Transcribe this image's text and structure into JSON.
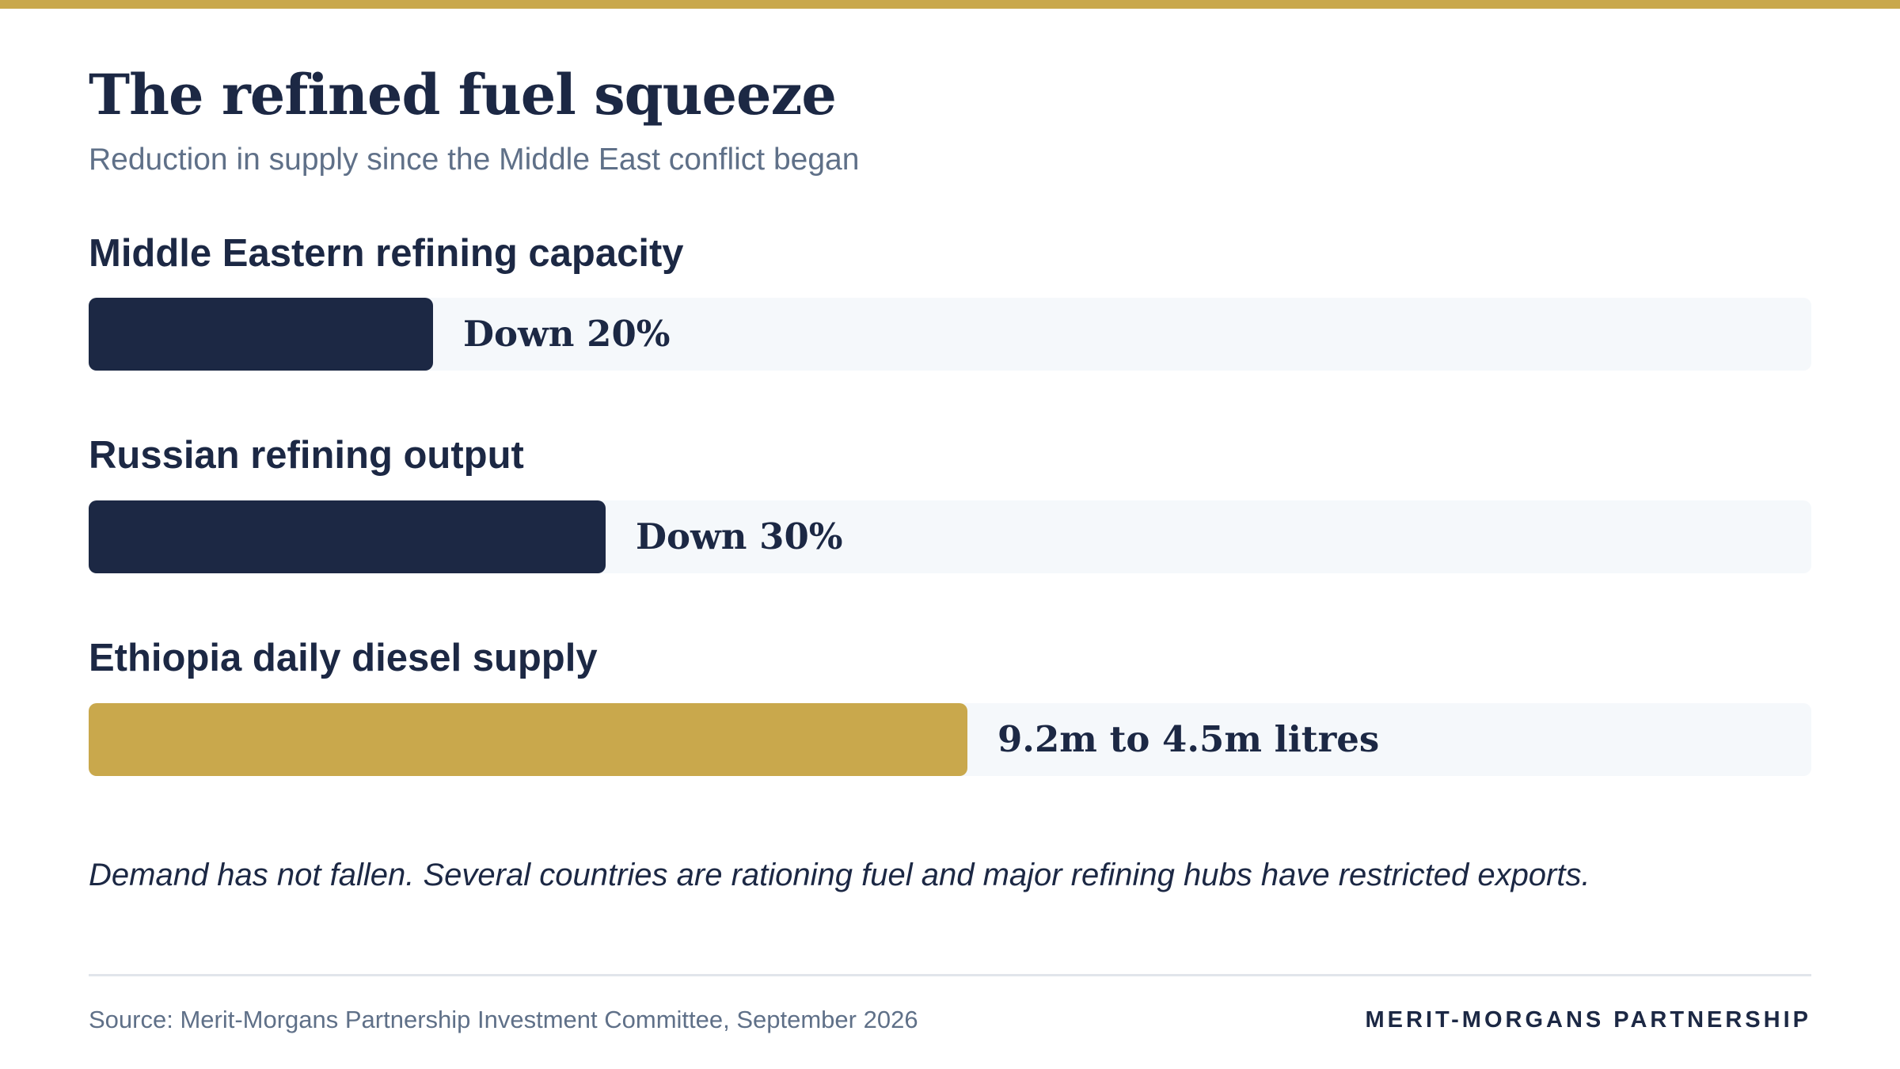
{
  "header": {
    "title": "The refined fuel squeeze",
    "subtitle": "Reduction in supply since the Middle East conflict began"
  },
  "chart_data": {
    "type": "bar",
    "orientation": "horizontal",
    "title": "The refined fuel squeeze",
    "subtitle": "Reduction in supply since the Middle East conflict began",
    "categories": [
      "Middle Eastern refining capacity",
      "Russian refining output",
      "Ethiopia daily diesel supply"
    ],
    "values": [
      20,
      30,
      51
    ],
    "unit": "percent reduction",
    "xlim": [
      0,
      100
    ],
    "labels": [
      "Down 20%",
      "Down 30%",
      "9.2m to 4.5m litres"
    ],
    "colors": [
      "#1c2844",
      "#1c2844",
      "#c9a84c"
    ],
    "track_color": "#f5f8fb",
    "grid": false,
    "legend": "none"
  },
  "note": "Demand has not fallen. Several countries are rationing fuel and major refining hubs have restricted exports.",
  "footer": {
    "source": "Source: Merit-Morgans Partnership Investment Committee, September 2026",
    "brand": "MERIT-MORGANS PARTNERSHIP"
  },
  "colors": {
    "accent": "#c9a84c",
    "navy": "#1c2844",
    "muted": "#5f7088"
  }
}
